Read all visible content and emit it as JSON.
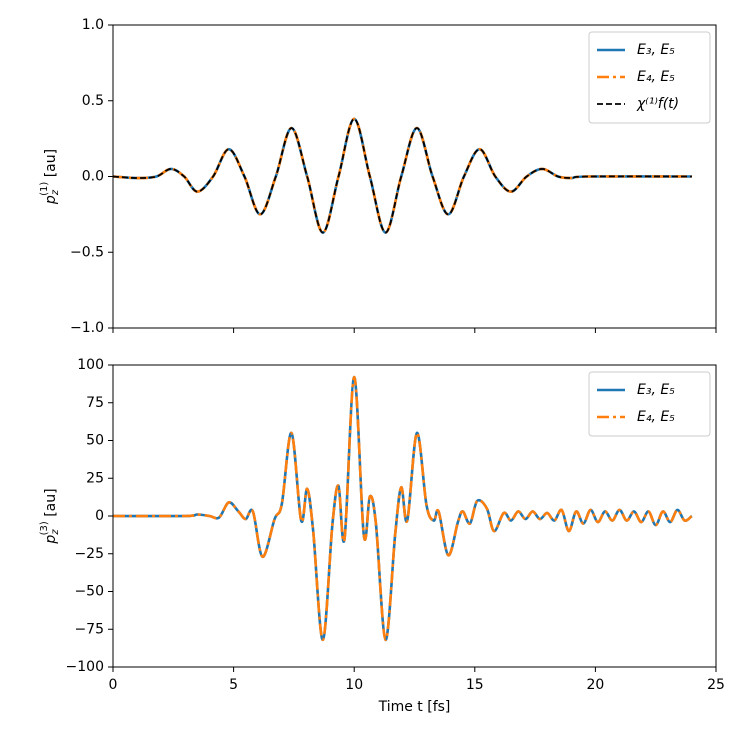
{
  "chart_data": [
    {
      "type": "line",
      "ylabel": {
        "base": "p",
        "sub": "z",
        "sup": "(1)",
        "unit": " [au]"
      },
      "ylim": [
        -1.0,
        1.0
      ],
      "yticks": [
        {
          "value": -1.0,
          "label": "−1.0"
        },
        {
          "value": -0.5,
          "label": "−0.5"
        },
        {
          "value": 0.0,
          "label": "0.0"
        },
        {
          "value": 0.5,
          "label": "0.5"
        },
        {
          "value": 1.0,
          "label": "1.0"
        }
      ],
      "xlim": [
        0,
        25
      ],
      "xticks": [
        0,
        5,
        10,
        15,
        20,
        25
      ],
      "legend": "upper right",
      "x": [
        0,
        1.0,
        1.8,
        2.4,
        2.95,
        3.5,
        4.15,
        4.8,
        5.45,
        6.1,
        6.75,
        7.4,
        8.05,
        8.7,
        9.35,
        10.0,
        10.65,
        11.3,
        11.95,
        12.6,
        13.25,
        13.9,
        14.55,
        15.2,
        15.85,
        16.5,
        17.15,
        17.8,
        18.45,
        19.0,
        19.7,
        24
      ],
      "series": [
        {
          "name": "E₃, E₅",
          "color": "#1f77b4",
          "linestyle": "solid",
          "values": [
            0,
            -0.01,
            0,
            0.05,
            0,
            -0.1,
            0,
            0.18,
            0,
            -0.25,
            0,
            0.32,
            0,
            -0.37,
            0,
            0.38,
            0,
            -0.37,
            0,
            0.32,
            0,
            -0.25,
            0,
            0.18,
            0,
            -0.1,
            0,
            0.05,
            0,
            -0.01,
            0,
            0
          ]
        },
        {
          "name": "E₄, E₅",
          "color": "#ff7f0e",
          "linestyle": "dashdot",
          "values": [
            0,
            -0.01,
            0,
            0.05,
            0,
            -0.1,
            0,
            0.18,
            0,
            -0.25,
            0,
            0.32,
            0,
            -0.37,
            0,
            0.38,
            0,
            -0.37,
            0,
            0.32,
            0,
            -0.25,
            0,
            0.18,
            0,
            -0.1,
            0,
            0.05,
            0,
            -0.01,
            0,
            0
          ]
        },
        {
          "name": "χ⁽¹⁾f(t)",
          "color": "#000000",
          "linestyle": "dashed",
          "values": [
            0,
            -0.01,
            0,
            0.05,
            0,
            -0.1,
            0,
            0.18,
            0,
            -0.25,
            0,
            0.32,
            0,
            -0.37,
            0,
            0.38,
            0,
            -0.37,
            0,
            0.32,
            0,
            -0.25,
            0,
            0.18,
            0,
            -0.1,
            0,
            0.05,
            0,
            -0.01,
            0,
            0
          ]
        }
      ]
    },
    {
      "type": "line",
      "ylabel": {
        "base": "p",
        "sub": "z",
        "sup": "(3)",
        "unit": " [au]"
      },
      "xlabel": "Time t [fs]",
      "ylim": [
        -100,
        100
      ],
      "yticks": [
        {
          "value": -100,
          "label": "−100"
        },
        {
          "value": -75,
          "label": "−75"
        },
        {
          "value": -50,
          "label": "−50"
        },
        {
          "value": -25,
          "label": "−25"
        },
        0,
        25,
        50,
        75,
        100
      ],
      "xlim": [
        0,
        25
      ],
      "xticks": [
        0,
        5,
        10,
        15,
        20,
        25
      ],
      "legend": "upper right",
      "x": [
        0,
        3,
        3.5,
        4,
        4.4,
        4.8,
        5.2,
        5.5,
        5.8,
        6.2,
        6.7,
        7.0,
        7.4,
        7.8,
        8.05,
        8.3,
        8.7,
        9.1,
        9.35,
        9.6,
        10.0,
        10.4,
        10.65,
        10.9,
        11.3,
        11.7,
        11.95,
        12.2,
        12.6,
        13.0,
        13.3,
        13.5,
        13.9,
        14.3,
        14.5,
        14.8,
        15.1,
        15.5,
        15.8,
        16.2,
        16.5,
        16.8,
        17.1,
        17.4,
        17.7,
        18.0,
        18.3,
        18.6,
        18.9,
        19.2,
        19.5,
        19.8,
        20.1,
        20.4,
        20.7,
        21.0,
        21.3,
        21.6,
        21.9,
        22.2,
        22.5,
        22.8,
        23.1,
        23.4,
        23.7,
        24
      ],
      "series": [
        {
          "name": "E₃, E₅",
          "color": "#1f77b4",
          "linestyle": "solid",
          "values": [
            0,
            0,
            1,
            0,
            -1,
            9,
            3,
            -2,
            3,
            -27,
            -2,
            8,
            55,
            -3,
            18,
            -10,
            -82,
            -5,
            20,
            -15,
            92,
            -13,
            13,
            -5,
            -82,
            -12,
            19,
            -3,
            55,
            7,
            -3,
            3,
            -26,
            -4,
            3,
            -5,
            10,
            5,
            -10,
            2,
            -3,
            3,
            -2,
            3,
            -2,
            2,
            -3,
            4,
            -10,
            3,
            -5,
            4,
            -4,
            3,
            -3,
            4,
            -3,
            3,
            -4,
            3,
            -6,
            3,
            -4,
            4,
            -3,
            0
          ]
        },
        {
          "name": "E₄, E₅",
          "color": "#ff7f0e",
          "linestyle": "dashdot",
          "values": [
            0,
            0,
            1,
            0,
            -1,
            9,
            3,
            -2,
            3,
            -27,
            -2,
            8,
            55,
            -3,
            18,
            -10,
            -82,
            -5,
            20,
            -15,
            92,
            -13,
            13,
            -5,
            -82,
            -12,
            19,
            -3,
            55,
            7,
            -3,
            3,
            -26,
            -4,
            3,
            -5,
            10,
            5,
            -10,
            2,
            -3,
            3,
            -2,
            3,
            -2,
            2,
            -3,
            4,
            -10,
            3,
            -5,
            4,
            -4,
            3,
            -3,
            4,
            -3,
            3,
            -4,
            3,
            -6,
            3,
            -4,
            4,
            -3,
            0
          ]
        }
      ]
    }
  ]
}
